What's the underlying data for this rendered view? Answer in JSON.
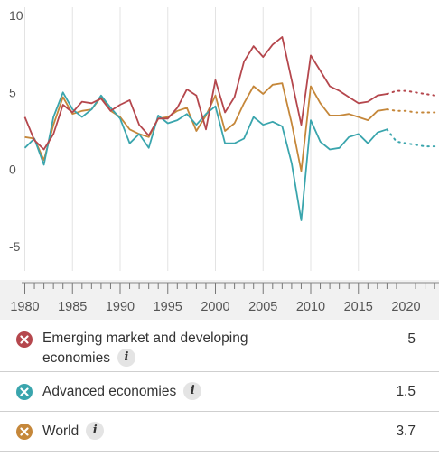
{
  "chart_data": {
    "type": "line",
    "title": "",
    "xlabel": "",
    "ylabel": "",
    "xlim": [
      1980,
      2023
    ],
    "ylim": [
      -5,
      10
    ],
    "y_ticks": [
      10,
      5,
      0,
      -5
    ],
    "y_tick_labels": [
      "10",
      "5",
      "0",
      "-5"
    ],
    "x_ticks": [
      1980,
      1985,
      1990,
      1995,
      2000,
      2005,
      2010,
      2015,
      2020
    ],
    "x_tick_labels": [
      "1980",
      "1985",
      "1990",
      "1995",
      "2000",
      "2005",
      "2010",
      "2015",
      "2020"
    ],
    "grid": "vertical",
    "projection_start": 2018,
    "series": [
      {
        "name": "Emerging market and developing economies",
        "color": "#b5474d",
        "display_value": "5",
        "x": [
          1980,
          1981,
          1982,
          1983,
          1984,
          1985,
          1986,
          1987,
          1988,
          1989,
          1990,
          1991,
          1992,
          1993,
          1994,
          1995,
          1996,
          1997,
          1998,
          1999,
          2000,
          2001,
          2002,
          2003,
          2004,
          2005,
          2006,
          2007,
          2008,
          2009,
          2010,
          2011,
          2012,
          2013,
          2014,
          2015,
          2016,
          2017,
          2018,
          2019,
          2020,
          2021,
          2022,
          2023
        ],
        "values": [
          3.4,
          1.9,
          1.3,
          2.3,
          4.2,
          3.7,
          4.4,
          4.3,
          4.6,
          3.8,
          4.2,
          4.5,
          2.9,
          2.2,
          3.3,
          3.3,
          4.0,
          5.2,
          4.8,
          2.6,
          5.8,
          3.7,
          4.7,
          7.0,
          8.0,
          7.3,
          8.1,
          8.6,
          5.8,
          2.9,
          7.4,
          6.4,
          5.4,
          5.1,
          4.7,
          4.3,
          4.4,
          4.8,
          4.9,
          5.1,
          5.1,
          5.0,
          4.9,
          4.8
        ]
      },
      {
        "name": "Advanced economies",
        "color": "#3aa5ad",
        "display_value": "1.5",
        "x": [
          1980,
          1981,
          1982,
          1983,
          1984,
          1985,
          1986,
          1987,
          1988,
          1989,
          1990,
          1991,
          1992,
          1993,
          1994,
          1995,
          1996,
          1997,
          1998,
          1999,
          2000,
          2001,
          2002,
          2003,
          2004,
          2005,
          2006,
          2007,
          2008,
          2009,
          2010,
          2011,
          2012,
          2013,
          2014,
          2015,
          2016,
          2017,
          2018,
          2019,
          2020,
          2021,
          2022,
          2023
        ],
        "values": [
          1.4,
          2.0,
          0.3,
          3.4,
          5.0,
          3.9,
          3.4,
          3.9,
          4.8,
          4.0,
          3.3,
          1.7,
          2.3,
          1.4,
          3.5,
          3.0,
          3.2,
          3.6,
          2.9,
          3.6,
          4.1,
          1.7,
          1.7,
          2.0,
          3.4,
          2.9,
          3.1,
          2.8,
          0.4,
          -3.3,
          3.2,
          1.8,
          1.3,
          1.4,
          2.1,
          2.3,
          1.7,
          2.4,
          2.6,
          1.8,
          1.7,
          1.6,
          1.5,
          1.5
        ]
      },
      {
        "name": "World",
        "color": "#c5873a",
        "display_value": "3.7",
        "x": [
          1980,
          1981,
          1982,
          1983,
          1984,
          1985,
          1986,
          1987,
          1988,
          1989,
          1990,
          1991,
          1992,
          1993,
          1994,
          1995,
          1996,
          1997,
          1998,
          1999,
          2000,
          2001,
          2002,
          2003,
          2004,
          2005,
          2006,
          2007,
          2008,
          2009,
          2010,
          2011,
          2012,
          2013,
          2014,
          2015,
          2016,
          2017,
          2018,
          2019,
          2020,
          2021,
          2022,
          2023
        ],
        "values": [
          2.1,
          2.0,
          0.6,
          2.9,
          4.7,
          3.6,
          3.8,
          3.9,
          4.7,
          3.8,
          3.4,
          2.6,
          2.3,
          2.1,
          3.3,
          3.4,
          3.8,
          4.0,
          2.5,
          3.5,
          4.8,
          2.5,
          3.0,
          4.3,
          5.4,
          4.9,
          5.5,
          5.6,
          3.0,
          -0.1,
          5.4,
          4.3,
          3.5,
          3.5,
          3.6,
          3.4,
          3.2,
          3.8,
          3.9,
          3.8,
          3.8,
          3.7,
          3.7,
          3.7
        ]
      }
    ]
  },
  "legend_entries": [
    {
      "line1": "Emerging market and developing",
      "line2": "economies",
      "value": "5"
    },
    {
      "line1": "Advanced economies",
      "line2": "",
      "value": "1.5"
    },
    {
      "line1": "World",
      "line2": "",
      "value": "3.7"
    }
  ],
  "info_icon": {
    "glyph": "i",
    "icon": "info-icon"
  },
  "remove_icon": {
    "icon": "close-x-icon"
  }
}
